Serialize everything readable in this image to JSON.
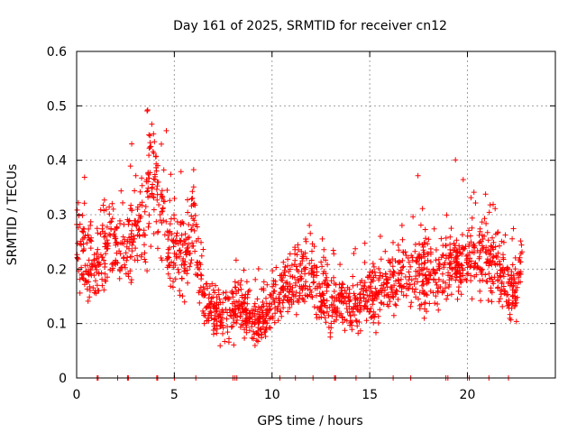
{
  "chart_data": {
    "type": "scatter",
    "title": "Day 161 of 2025, SRMTID for receiver cn12",
    "xlabel": "GPS time / hours",
    "ylabel": "SRMTID / TECUs",
    "xlim": [
      0,
      24.5
    ],
    "ylim": [
      0,
      0.6
    ],
    "xticks": [
      0,
      5,
      10,
      15,
      20
    ],
    "yticks": [
      0,
      0.1,
      0.2,
      0.3,
      0.4,
      0.5,
      0.6
    ],
    "grid": true,
    "marker": "+",
    "color": "#ff0000",
    "profile": {
      "x": [
        0,
        0.5,
        1.0,
        1.5,
        2.0,
        2.5,
        3.0,
        3.5,
        3.8,
        4.2,
        4.6,
        5.0,
        5.5,
        6.0,
        6.5,
        7.0,
        7.5,
        8.0,
        8.5,
        9.0,
        9.5,
        10.0,
        10.5,
        11.0,
        11.5,
        12.0,
        12.5,
        13.0,
        13.5,
        14.0,
        14.5,
        15.0,
        15.5,
        16.0,
        16.5,
        17.0,
        17.5,
        18.0,
        18.5,
        19.0,
        19.5,
        20.0,
        20.5,
        21.0,
        21.5,
        22.0,
        22.5,
        22.8
      ],
      "center": [
        0.25,
        0.23,
        0.2,
        0.26,
        0.25,
        0.22,
        0.27,
        0.28,
        0.38,
        0.32,
        0.26,
        0.24,
        0.22,
        0.28,
        0.15,
        0.12,
        0.11,
        0.12,
        0.13,
        0.1,
        0.11,
        0.13,
        0.16,
        0.17,
        0.18,
        0.2,
        0.15,
        0.14,
        0.14,
        0.13,
        0.15,
        0.15,
        0.16,
        0.17,
        0.18,
        0.19,
        0.2,
        0.19,
        0.18,
        0.21,
        0.22,
        0.21,
        0.22,
        0.23,
        0.21,
        0.18,
        0.15,
        0.25
      ],
      "spread": [
        0.06,
        0.07,
        0.06,
        0.08,
        0.05,
        0.06,
        0.07,
        0.08,
        0.1,
        0.09,
        0.07,
        0.07,
        0.07,
        0.08,
        0.04,
        0.04,
        0.04,
        0.04,
        0.04,
        0.04,
        0.04,
        0.04,
        0.05,
        0.05,
        0.05,
        0.06,
        0.05,
        0.05,
        0.04,
        0.04,
        0.05,
        0.05,
        0.05,
        0.05,
        0.05,
        0.06,
        0.06,
        0.06,
        0.05,
        0.06,
        0.06,
        0.06,
        0.06,
        0.06,
        0.06,
        0.06,
        0.05,
        0.05
      ]
    },
    "zero_points_x": [
      1.05,
      1.1,
      2.1,
      2.6,
      2.65,
      4.1,
      4.15,
      5.0,
      6.1,
      8.0,
      8.1,
      8.2,
      10.4,
      11.2,
      12.1,
      13.2,
      13.25,
      14.3,
      16.2,
      17.1,
      18.9,
      19.0,
      20.0,
      20.1,
      21.1,
      22.1
    ]
  }
}
